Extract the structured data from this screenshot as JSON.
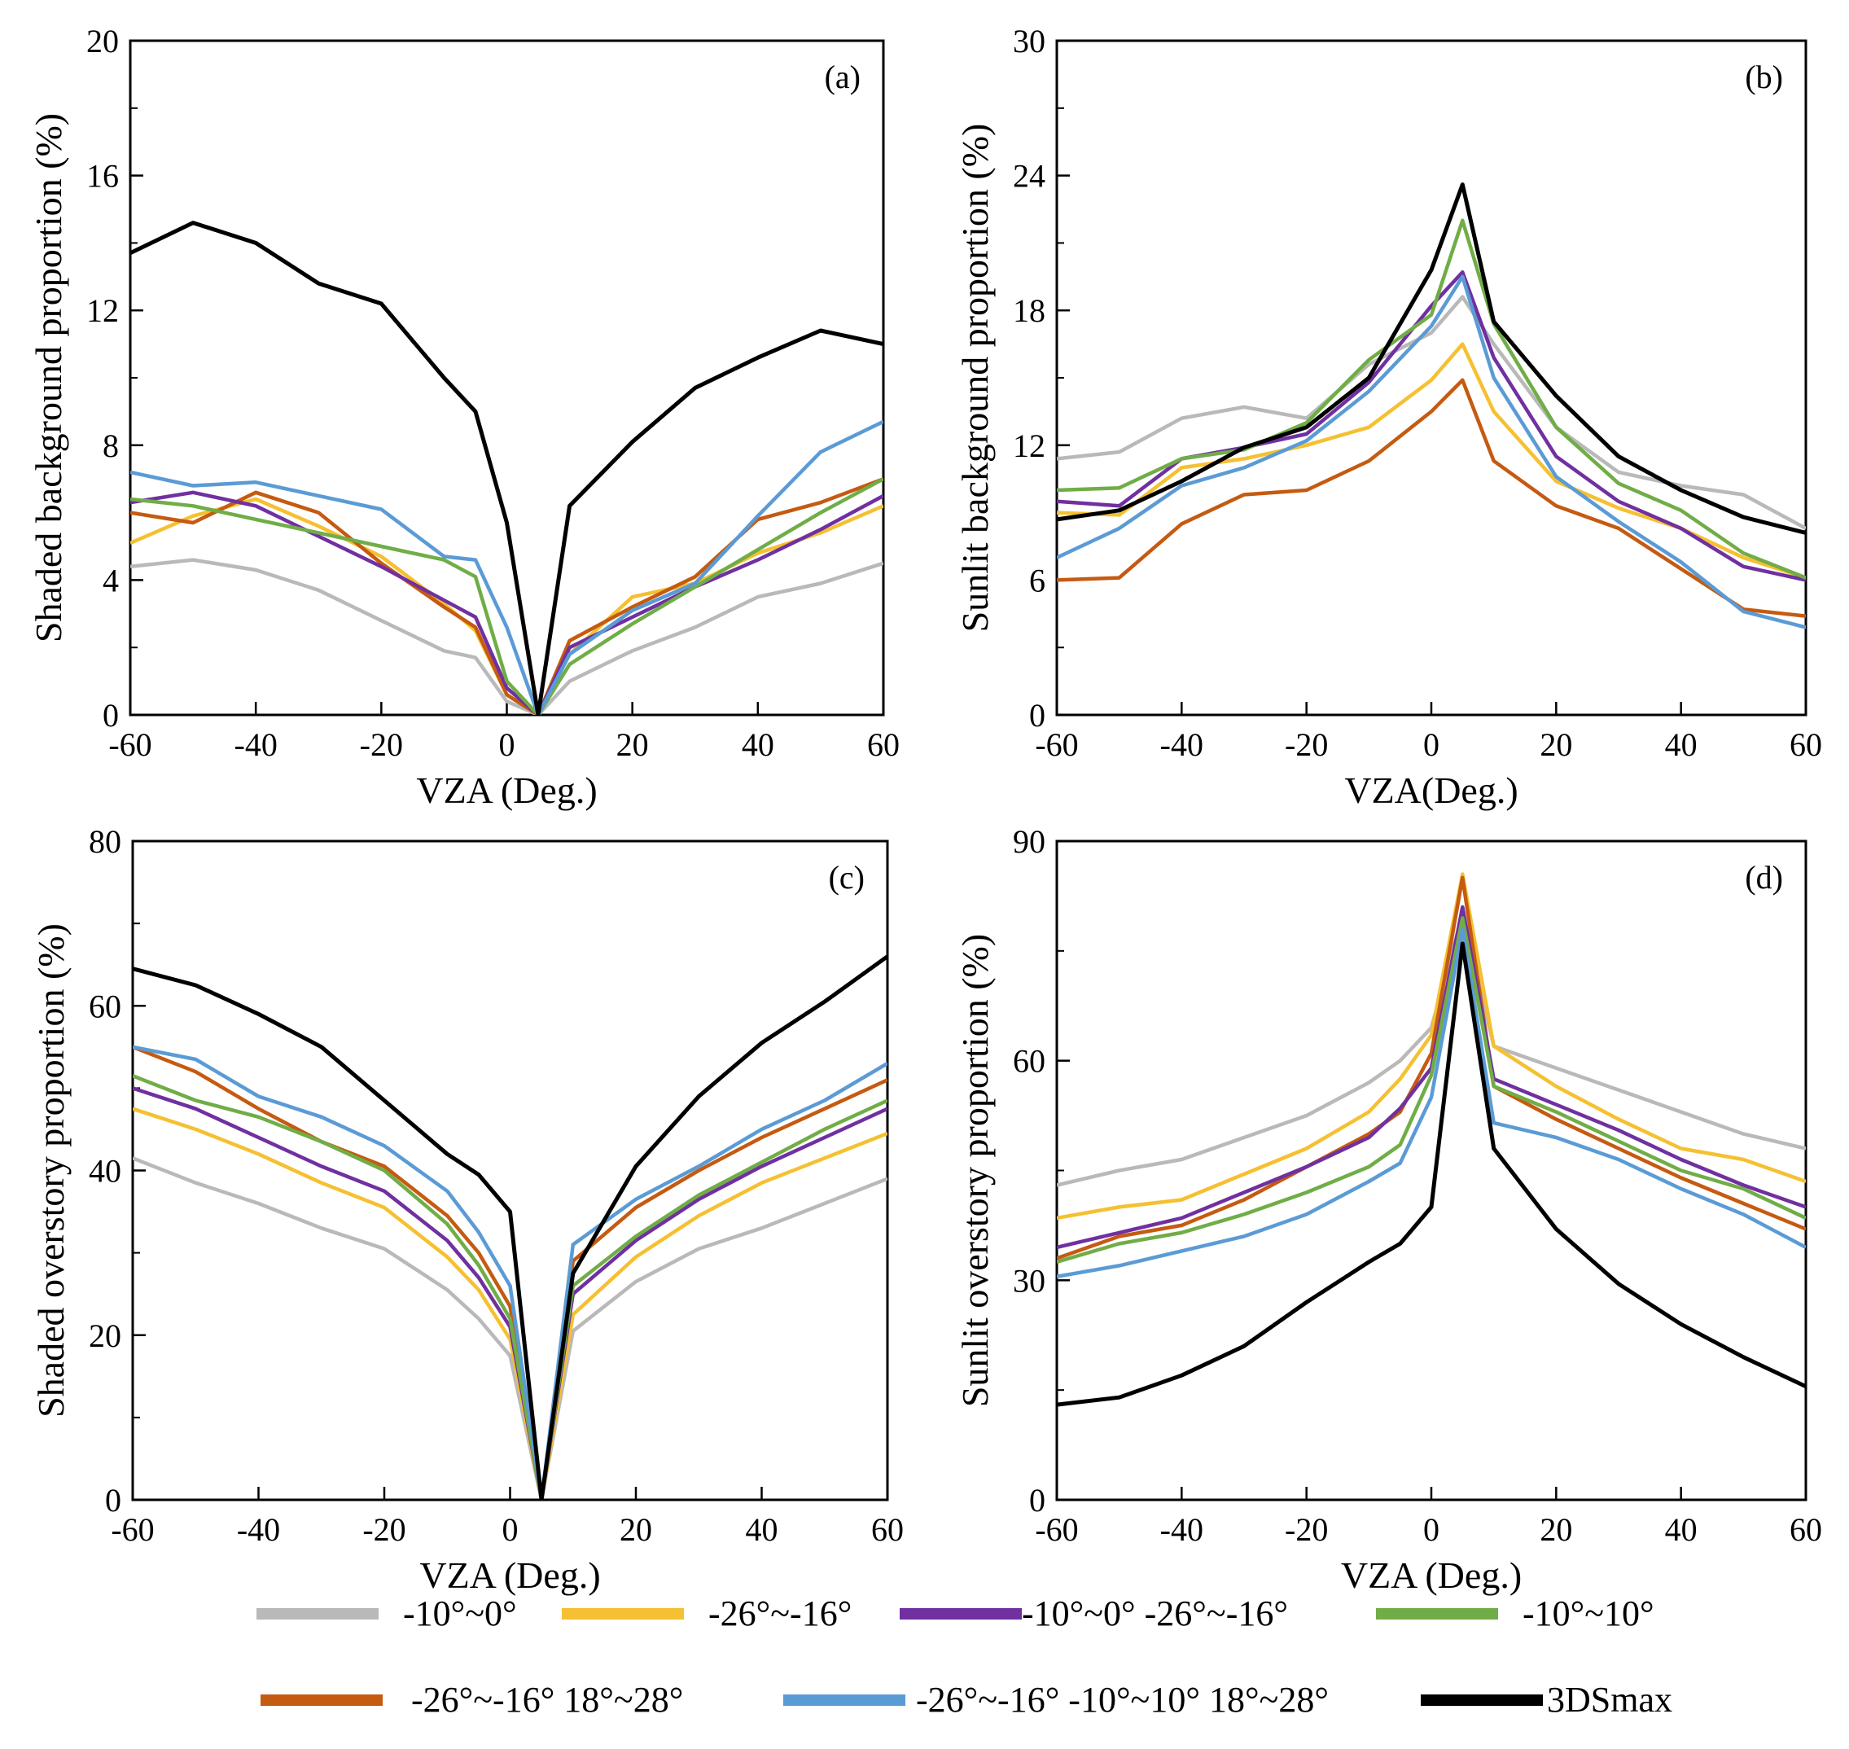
{
  "figure": {
    "legend": [
      {
        "key": "s1",
        "label": "-10°~0°",
        "color": "#b9b9b9"
      },
      {
        "key": "s2",
        "label": "-26°~-16°",
        "color": "#f5c031"
      },
      {
        "key": "s3",
        "label": "-10°~0° -26°~-16°",
        "color": "#7030a0"
      },
      {
        "key": "s4",
        "label": "-10°~10°",
        "color": "#70ad47"
      },
      {
        "key": "s5",
        "label": "-26°~-16° 18°~28°",
        "color": "#c55a11"
      },
      {
        "key": "s6",
        "label": "-26°~-16° -10°~10° 18°~28°",
        "color": "#5b9bd5"
      },
      {
        "key": "s7",
        "label": "3DSmax",
        "color": "#000000"
      }
    ]
  },
  "chart_data": [
    {
      "type": "line",
      "panel": "(a)",
      "title": "",
      "xlabel": "VZA (Deg.)",
      "ylabel": "Shaded background proportion (%)",
      "xlim": [
        -60,
        60
      ],
      "ylim": [
        0,
        20
      ],
      "xticks": [
        -60,
        -40,
        -20,
        0,
        20,
        40,
        60
      ],
      "yticks": [
        0,
        4,
        8,
        12,
        16,
        20
      ],
      "x": [
        -60,
        -50,
        -40,
        -30,
        -20,
        -10,
        -5,
        0,
        5,
        10,
        20,
        30,
        40,
        50,
        60
      ],
      "series": [
        {
          "key": "s1",
          "name": "-10°~0°",
          "values": [
            4.4,
            4.6,
            4.3,
            3.7,
            2.8,
            1.9,
            1.7,
            0.4,
            0,
            1.0,
            1.9,
            2.6,
            3.5,
            3.9,
            4.5
          ]
        },
        {
          "key": "s2",
          "name": "-26°~-16°",
          "values": [
            5.1,
            5.9,
            6.4,
            5.6,
            4.7,
            3.3,
            2.5,
            0.6,
            0,
            1.8,
            3.5,
            3.9,
            4.8,
            5.4,
            6.2
          ]
        },
        {
          "key": "s3",
          "name": "-10°~0° -26°~-16°",
          "values": [
            6.3,
            6.6,
            6.2,
            5.3,
            4.4,
            3.4,
            2.9,
            0.8,
            0,
            2.0,
            2.9,
            3.8,
            4.6,
            5.5,
            6.5
          ]
        },
        {
          "key": "s4",
          "name": "-10°~10°",
          "values": [
            6.4,
            6.2,
            5.8,
            5.4,
            5.0,
            4.6,
            4.1,
            1.0,
            0,
            1.5,
            2.7,
            3.8,
            4.9,
            6.0,
            7.0
          ]
        },
        {
          "key": "s5",
          "name": "-26°~-16° 18°~28°",
          "values": [
            6.0,
            5.7,
            6.6,
            6.0,
            4.5,
            3.2,
            2.6,
            0.6,
            0,
            2.2,
            3.2,
            4.1,
            5.8,
            6.3,
            7.0
          ]
        },
        {
          "key": "s6",
          "name": "-26°~-16° -10°~10° 18°~28°",
          "values": [
            7.2,
            6.8,
            6.9,
            6.5,
            6.1,
            4.7,
            4.6,
            2.6,
            0,
            1.8,
            3.1,
            3.9,
            5.9,
            7.8,
            8.7
          ]
        },
        {
          "key": "s7",
          "name": "3DSmax",
          "values": [
            13.7,
            14.6,
            14.0,
            12.8,
            12.2,
            10.0,
            9.0,
            5.7,
            0,
            6.2,
            8.1,
            9.7,
            10.6,
            11.4,
            11.0
          ]
        }
      ]
    },
    {
      "type": "line",
      "panel": "(b)",
      "title": "",
      "xlabel": "VZA(Deg.)",
      "ylabel": "Sunlit background proportion (%)",
      "xlim": [
        -60,
        60
      ],
      "ylim": [
        0,
        30
      ],
      "xticks": [
        -60,
        -40,
        -20,
        0,
        20,
        40,
        60
      ],
      "yticks": [
        0,
        6,
        12,
        18,
        24,
        30
      ],
      "x": [
        -60,
        -50,
        -40,
        -30,
        -20,
        -10,
        0,
        5,
        10,
        20,
        30,
        40,
        50,
        60
      ],
      "series": [
        {
          "key": "s1",
          "name": "-10°~0°",
          "values": [
            11.4,
            11.7,
            13.2,
            13.7,
            13.2,
            15.6,
            17.0,
            18.6,
            16.5,
            12.8,
            10.8,
            10.2,
            9.8,
            8.3
          ]
        },
        {
          "key": "s2",
          "name": "-26°~-16°",
          "values": [
            9.0,
            8.9,
            11.0,
            11.4,
            12.0,
            12.8,
            14.9,
            16.5,
            13.5,
            10.4,
            9.2,
            8.3,
            7.0,
            6.1
          ]
        },
        {
          "key": "s3",
          "name": "-10°~0° -26°~-16°",
          "values": [
            9.5,
            9.3,
            11.4,
            11.9,
            12.5,
            14.8,
            18.2,
            19.7,
            15.9,
            11.5,
            9.5,
            8.3,
            6.6,
            6.0
          ]
        },
        {
          "key": "s4",
          "name": "-10°~10°",
          "values": [
            10.0,
            10.1,
            11.4,
            11.8,
            13.0,
            15.8,
            17.8,
            22.0,
            17.4,
            12.8,
            10.3,
            9.1,
            7.2,
            6.1
          ]
        },
        {
          "key": "s5",
          "name": "-26°~-16° 18°~28°",
          "values": [
            6.0,
            6.1,
            8.5,
            9.8,
            10.0,
            11.3,
            13.5,
            14.9,
            11.3,
            9.3,
            8.3,
            6.5,
            4.7,
            4.4
          ]
        },
        {
          "key": "s6",
          "name": "-26°~-16° -10°~10° 18°~28°",
          "values": [
            7.0,
            8.3,
            10.2,
            11.0,
            12.2,
            14.4,
            17.3,
            19.5,
            15.0,
            10.6,
            8.6,
            6.8,
            4.6,
            3.9
          ]
        },
        {
          "key": "s7",
          "name": "3DSmax",
          "values": [
            8.7,
            9.1,
            10.4,
            11.9,
            12.8,
            15.0,
            19.8,
            23.6,
            17.5,
            14.2,
            11.5,
            10.0,
            8.8,
            8.1
          ]
        }
      ]
    },
    {
      "type": "line",
      "panel": "(c)",
      "title": "",
      "xlabel": "VZA (Deg.)",
      "ylabel": "Shaded overstory proportion (%)",
      "xlim": [
        -60,
        60
      ],
      "ylim": [
        0,
        80
      ],
      "xticks": [
        -60,
        -40,
        -20,
        0,
        20,
        40,
        60
      ],
      "yticks": [
        0,
        20,
        40,
        60,
        80
      ],
      "x": [
        -60,
        -50,
        -40,
        -30,
        -20,
        -10,
        -5,
        0,
        5,
        10,
        20,
        30,
        40,
        50,
        60
      ],
      "series": [
        {
          "key": "s1",
          "name": "-10°~0°",
          "values": [
            41.5,
            38.5,
            36.0,
            33.0,
            30.5,
            25.5,
            22.0,
            17.5,
            0,
            20.5,
            26.5,
            30.5,
            33.0,
            36.0,
            39.0
          ]
        },
        {
          "key": "s2",
          "name": "-26°~-16°",
          "values": [
            47.5,
            45.0,
            42.0,
            38.5,
            35.5,
            29.5,
            25.5,
            19.5,
            0,
            22.5,
            29.5,
            34.5,
            38.5,
            41.5,
            44.5
          ]
        },
        {
          "key": "s3",
          "name": "-10°~0° -26°~-16°",
          "values": [
            50.0,
            47.5,
            44.0,
            40.5,
            37.5,
            31.5,
            27.0,
            21.0,
            0,
            25.0,
            31.5,
            36.5,
            40.5,
            44.0,
            47.5
          ]
        },
        {
          "key": "s4",
          "name": "-10°~10°",
          "values": [
            51.5,
            48.5,
            46.5,
            43.5,
            40.0,
            33.5,
            28.5,
            22.0,
            0,
            26.0,
            32.0,
            37.0,
            41.0,
            45.0,
            48.5
          ]
        },
        {
          "key": "s5",
          "name": "-26°~-16° 18°~28°",
          "values": [
            55.0,
            52.0,
            47.5,
            43.5,
            40.5,
            34.5,
            30.0,
            23.5,
            0,
            29.0,
            35.5,
            40.0,
            44.0,
            47.5,
            51.0
          ]
        },
        {
          "key": "s6",
          "name": "-26°~-16° -10°~10° 18°~28°",
          "values": [
            55.0,
            53.5,
            49.0,
            46.5,
            43.0,
            37.5,
            32.5,
            26.0,
            0,
            31.0,
            36.5,
            40.5,
            45.0,
            48.5,
            53.0
          ]
        },
        {
          "key": "s7",
          "name": "3DSmax",
          "values": [
            64.5,
            62.5,
            59.0,
            55.0,
            48.5,
            42.0,
            39.5,
            35.0,
            0,
            27.5,
            40.5,
            49.0,
            55.5,
            60.5,
            66.0
          ]
        }
      ]
    },
    {
      "type": "line",
      "panel": "(d)",
      "title": "",
      "xlabel": "VZA (Deg.)",
      "ylabel": "Sunlit overstory proportion (%)",
      "xlim": [
        -60,
        60
      ],
      "ylim": [
        0,
        90
      ],
      "xticks": [
        -60,
        -40,
        -20,
        0,
        20,
        40,
        60
      ],
      "yticks": [
        0,
        30,
        60,
        90
      ],
      "x": [
        -60,
        -50,
        -40,
        -30,
        -20,
        -10,
        -5,
        0,
        5,
        10,
        20,
        30,
        40,
        50,
        60
      ],
      "series": [
        {
          "key": "s1",
          "name": "-10°~0°",
          "values": [
            43.0,
            45.0,
            46.5,
            49.5,
            52.5,
            57.0,
            60.0,
            64.5,
            80.0,
            62.0,
            59.0,
            56.0,
            53.0,
            50.0,
            48.0
          ]
        },
        {
          "key": "s2",
          "name": "-26°~-16°",
          "values": [
            38.5,
            40.0,
            41.0,
            44.5,
            48.0,
            53.0,
            57.5,
            63.5,
            85.5,
            62.0,
            56.5,
            52.0,
            48.0,
            46.5,
            43.5
          ]
        },
        {
          "key": "s3",
          "name": "-10°~0° -26°~-16°",
          "values": [
            34.5,
            36.5,
            38.5,
            42.0,
            45.5,
            49.5,
            53.5,
            59.0,
            81.0,
            57.5,
            54.0,
            50.5,
            46.5,
            43.0,
            40.0
          ]
        },
        {
          "key": "s4",
          "name": "-10°~10°",
          "values": [
            32.5,
            35.0,
            36.5,
            39.0,
            42.0,
            45.5,
            48.5,
            58.0,
            79.5,
            56.5,
            53.0,
            49.0,
            45.0,
            42.5,
            38.5
          ]
        },
        {
          "key": "s5",
          "name": "-26°~-16° 18°~28°",
          "values": [
            33.0,
            36.0,
            37.5,
            41.0,
            45.5,
            50.0,
            53.0,
            61.0,
            85.0,
            56.5,
            52.0,
            48.0,
            44.0,
            40.5,
            37.0
          ]
        },
        {
          "key": "s6",
          "name": "-26°~-16° -10°~10° 18°~28°",
          "values": [
            30.5,
            32.0,
            34.0,
            36.0,
            39.0,
            43.5,
            46.0,
            55.0,
            78.0,
            51.5,
            49.5,
            46.5,
            42.5,
            39.0,
            34.5
          ]
        },
        {
          "key": "s7",
          "name": "3DSmax",
          "values": [
            13.0,
            14.0,
            17.0,
            21.0,
            27.0,
            32.5,
            35.0,
            40.0,
            76.0,
            48.0,
            37.0,
            29.5,
            24.0,
            19.5,
            15.5
          ]
        }
      ]
    }
  ]
}
